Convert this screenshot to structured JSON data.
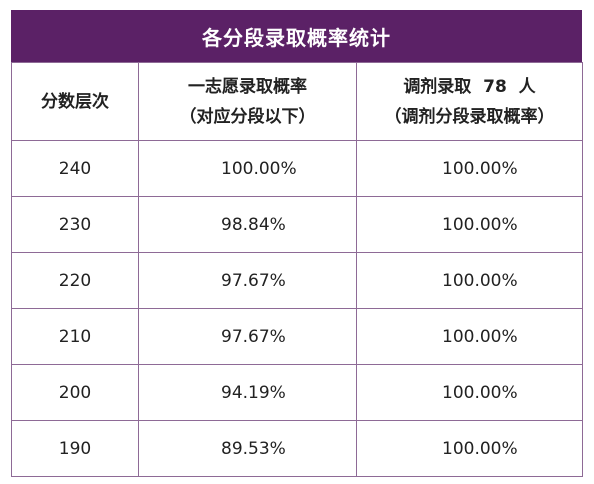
{
  "table": {
    "title": "各分段录取概率统计",
    "headers": {
      "score": "分数层次",
      "first_choice_line1": "一志愿录取概率",
      "first_choice_line2": "（对应分段以下）",
      "transfer_prefix": "调剂录取",
      "transfer_count": "78",
      "transfer_suffix": "人",
      "transfer_line2": "（调剂分段录取概率）"
    },
    "rows": [
      {
        "score": "240",
        "first_choice": "100.00%",
        "transfer": "100.00%"
      },
      {
        "score": "230",
        "first_choice": "98.84%",
        "transfer": "100.00%"
      },
      {
        "score": "220",
        "first_choice": "97.67%",
        "transfer": "100.00%"
      },
      {
        "score": "210",
        "first_choice": "97.67%",
        "transfer": "100.00%"
      },
      {
        "score": "200",
        "first_choice": "94.19%",
        "transfer": "100.00%"
      },
      {
        "score": "190",
        "first_choice": "89.53%",
        "transfer": "100.00%"
      }
    ]
  }
}
